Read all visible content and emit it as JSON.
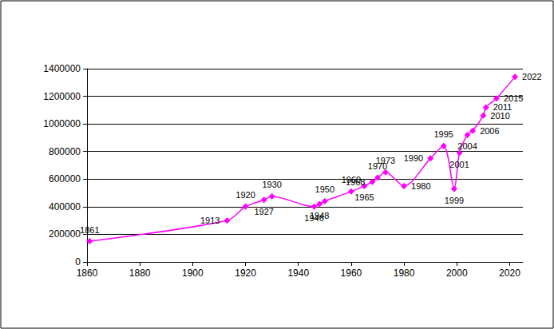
{
  "chart_data": {
    "type": "line",
    "x": [
      1861,
      1913,
      1920,
      1927,
      1930,
      1946,
      1948,
      1950,
      1960,
      1965,
      1968,
      1970,
      1973,
      1980,
      1990,
      1995,
      1999,
      2001,
      2004,
      2006,
      2010,
      2011,
      2015,
      2022
    ],
    "values": [
      150000,
      300000,
      400000,
      450000,
      475000,
      400000,
      420000,
      440000,
      510000,
      550000,
      580000,
      610000,
      650000,
      550000,
      750000,
      840000,
      530000,
      790000,
      920000,
      950000,
      1060000,
      1120000,
      1185000,
      1340000
    ],
    "point_labels": [
      "1861",
      "1913",
      "1920",
      "1927",
      "1930",
      "1946",
      "1948",
      "1950",
      "1960",
      "1965",
      "1968",
      "1970",
      "1973",
      "1980",
      "1990",
      "1995",
      "1999",
      "2001",
      "2004",
      "2006",
      "2010",
      "2011",
      "2015",
      "2022"
    ],
    "color": "#ff00ff",
    "marker": "diamond",
    "line_style": "smooth",
    "xlim": [
      1860,
      2025
    ],
    "xticks": [
      1860,
      1880,
      1900,
      1920,
      1940,
      1960,
      1980,
      2000,
      2020
    ],
    "ylim": [
      0,
      1400000
    ],
    "yticks": [
      0,
      200000,
      400000,
      600000,
      800000,
      1000000,
      1200000,
      1400000
    ],
    "grid": true
  }
}
